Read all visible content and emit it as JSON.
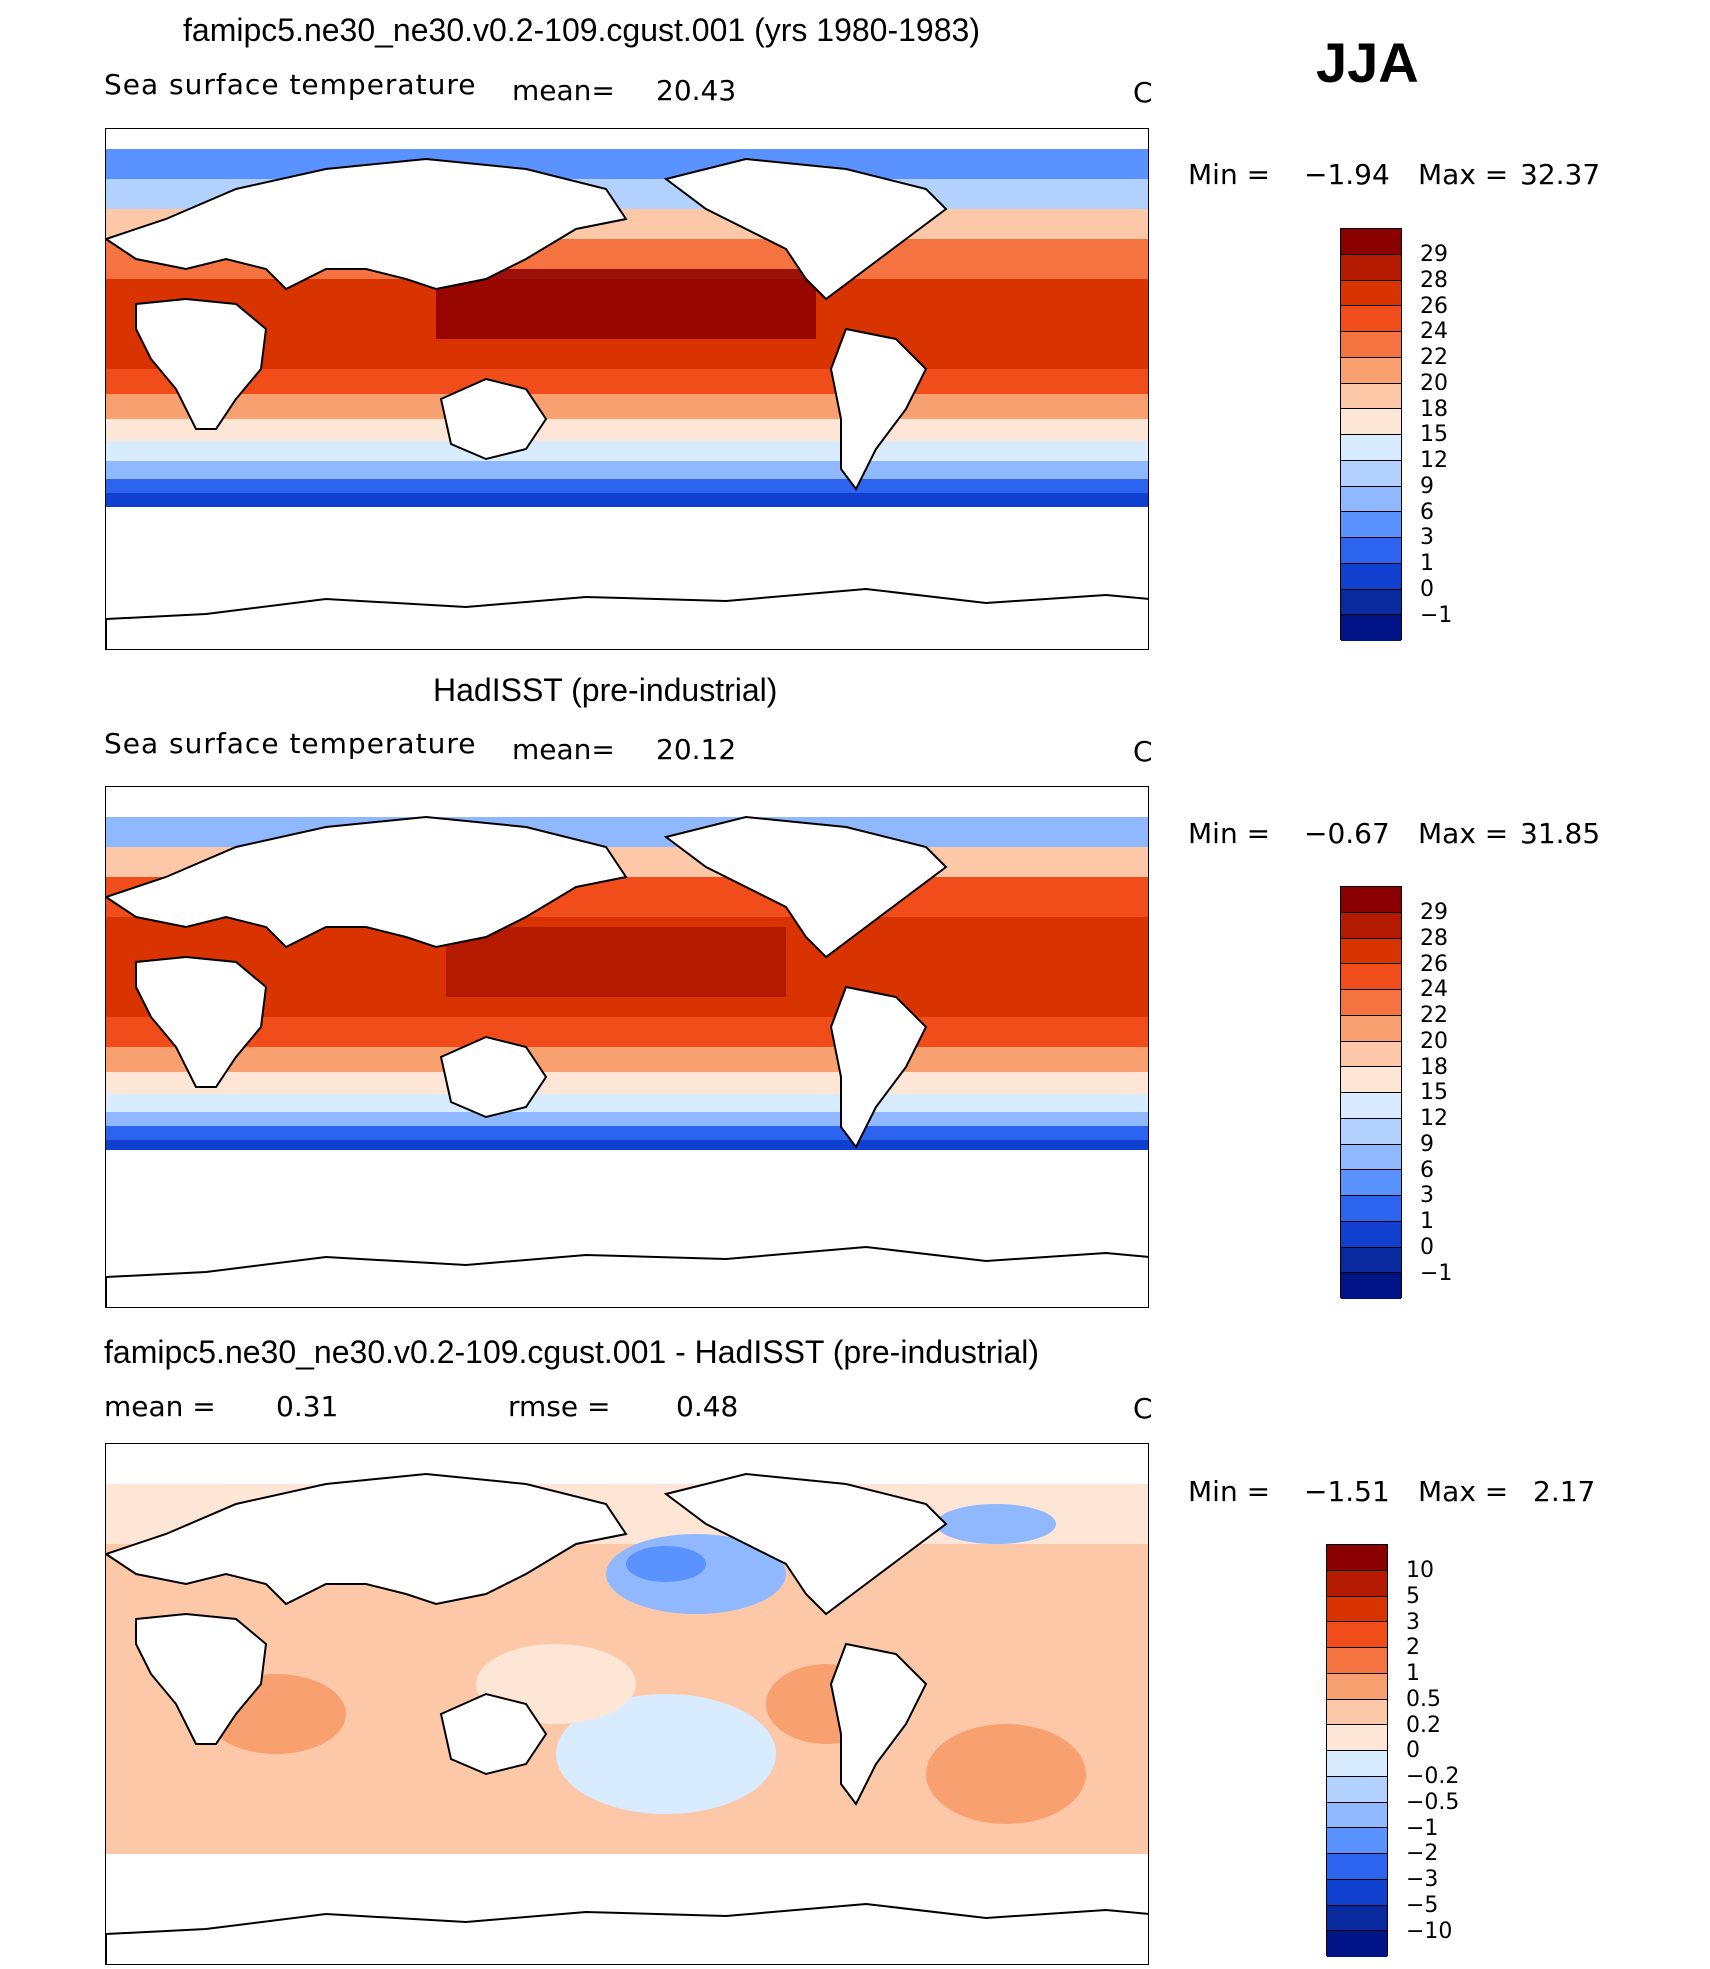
{
  "season": "JJA",
  "panels": [
    {
      "title": "famipc5.ne30_ne30.v0.2-109.cgust.001 (yrs 1980-1983)",
      "variable": "Sea surface temperature",
      "mean_label": "mean=",
      "mean_value": "20.43",
      "units": "C",
      "min_label": "Min =",
      "min_value": "−1.94",
      "max_label": "Max =",
      "max_value": "32.37",
      "ticks": [
        "29",
        "28",
        "26",
        "24",
        "22",
        "20",
        "18",
        "15",
        "12",
        "9",
        "6",
        "3",
        "1",
        "0",
        "−1"
      ],
      "colors": [
        "#8b0000",
        "#b31a00",
        "#d93300",
        "#f04d1a",
        "#f57340",
        "#f9a070",
        "#fcc8a8",
        "#fde6d6",
        "#d9ecff",
        "#b3d1ff",
        "#8fb8ff",
        "#5a93ff",
        "#2c64f0",
        "#1040d0",
        "#0a2aa0",
        "#001488"
      ]
    },
    {
      "title": "HadISST (pre-industrial)",
      "variable": "Sea surface temperature",
      "mean_label": "mean=",
      "mean_value": "20.12",
      "units": "C",
      "min_label": "Min =",
      "min_value": "−0.67",
      "max_label": "Max =",
      "max_value": "31.85",
      "ticks": [
        "29",
        "28",
        "26",
        "24",
        "22",
        "20",
        "18",
        "15",
        "12",
        "9",
        "6",
        "3",
        "1",
        "0",
        "−1"
      ],
      "colors": [
        "#8b0000",
        "#b31a00",
        "#d93300",
        "#f04d1a",
        "#f57340",
        "#f9a070",
        "#fcc8a8",
        "#fde6d6",
        "#d9ecff",
        "#b3d1ff",
        "#8fb8ff",
        "#5a93ff",
        "#2c64f0",
        "#1040d0",
        "#0a2aa0",
        "#001488"
      ]
    },
    {
      "title": "famipc5.ne30_ne30.v0.2-109.cgust.001 - HadISST (pre-industrial)",
      "mean_label": "mean =",
      "mean_value": "0.31",
      "rmse_label": "rmse =",
      "rmse_value": "0.48",
      "units": "C",
      "min_label": "Min =",
      "min_value": "−1.51",
      "max_label": "Max =",
      "max_value": "2.17",
      "ticks": [
        "10",
        "5",
        "3",
        "2",
        "1",
        "0.5",
        "0.2",
        "0",
        "−0.2",
        "−0.5",
        "−1",
        "−2",
        "−3",
        "−5",
        "−10"
      ],
      "colors": [
        "#8b0000",
        "#b31a00",
        "#d93300",
        "#f04d1a",
        "#f57340",
        "#f9a070",
        "#fcc8a8",
        "#fde6d6",
        "#d9ecff",
        "#b3d1ff",
        "#8fb8ff",
        "#5a93ff",
        "#2c64f0",
        "#1040d0",
        "#0a2aa0",
        "#001488"
      ]
    }
  ]
}
